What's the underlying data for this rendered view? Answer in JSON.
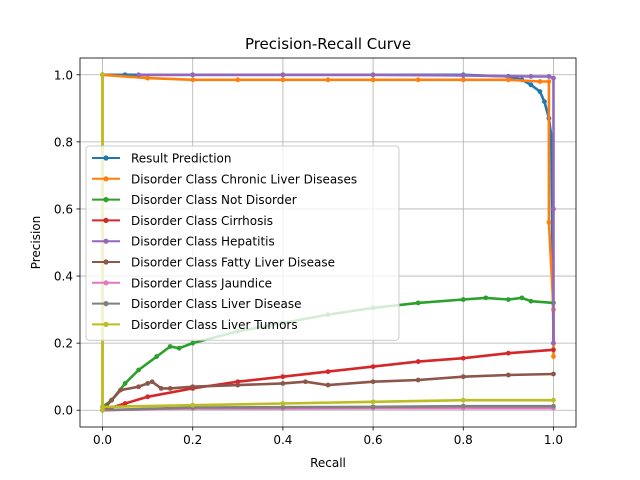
{
  "chart_data": {
    "type": "line",
    "title": "Precision-Recall Curve",
    "xlabel": "Recall",
    "ylabel": "Precision",
    "xlim": [
      -0.05,
      1.05
    ],
    "ylim": [
      -0.05,
      1.05
    ],
    "xticks": [
      0.0,
      0.2,
      0.4,
      0.6,
      0.8,
      1.0
    ],
    "yticks": [
      0.0,
      0.2,
      0.4,
      0.6,
      0.8,
      1.0
    ],
    "xtick_labels": [
      "0.0",
      "0.2",
      "0.4",
      "0.6",
      "0.8",
      "1.0"
    ],
    "ytick_labels": [
      "0.0",
      "0.2",
      "0.4",
      "0.6",
      "0.8",
      "1.0"
    ],
    "grid": true,
    "legend_position": "center-left",
    "series": [
      {
        "name": "Result Prediction",
        "color": "#1f77b4",
        "x": [
          0.0,
          0.0,
          0.05,
          0.2,
          0.4,
          0.6,
          0.8,
          0.9,
          0.93,
          0.95,
          0.97,
          0.98,
          0.99,
          0.995,
          1.0
        ],
        "y": [
          1.0,
          1.0,
          1.0,
          1.0,
          1.0,
          1.0,
          1.0,
          0.995,
          0.985,
          0.97,
          0.95,
          0.92,
          0.87,
          0.82,
          0.2
        ]
      },
      {
        "name": "Disorder Class Chronic Liver Diseases",
        "color": "#ff7f0e",
        "x": [
          0.0,
          0.0,
          0.1,
          0.2,
          0.3,
          0.4,
          0.5,
          0.6,
          0.7,
          0.8,
          0.9,
          0.97,
          0.99,
          0.99,
          1.0,
          1.0
        ],
        "y": [
          0.0,
          1.0,
          0.99,
          0.985,
          0.985,
          0.985,
          0.985,
          0.985,
          0.985,
          0.985,
          0.985,
          0.98,
          0.98,
          0.56,
          0.3,
          0.16
        ]
      },
      {
        "name": "Disorder Class Not Disorder",
        "color": "#2ca02c",
        "x": [
          0.0,
          0.02,
          0.05,
          0.08,
          0.12,
          0.15,
          0.17,
          0.2,
          0.3,
          0.4,
          0.5,
          0.6,
          0.7,
          0.8,
          0.85,
          0.9,
          0.93,
          0.95,
          1.0
        ],
        "y": [
          0.01,
          0.03,
          0.08,
          0.12,
          0.16,
          0.19,
          0.185,
          0.2,
          0.235,
          0.26,
          0.285,
          0.305,
          0.32,
          0.33,
          0.335,
          0.33,
          0.335,
          0.325,
          0.32
        ]
      },
      {
        "name": "Disorder Class Cirrhosis",
        "color": "#d62728",
        "x": [
          0.0,
          0.05,
          0.1,
          0.2,
          0.3,
          0.4,
          0.5,
          0.6,
          0.7,
          0.8,
          0.9,
          1.0
        ],
        "y": [
          0.0,
          0.02,
          0.04,
          0.065,
          0.085,
          0.1,
          0.115,
          0.13,
          0.145,
          0.155,
          0.17,
          0.18
        ]
      },
      {
        "name": "Disorder Class Hepatitis",
        "color": "#9467bd",
        "x": [
          0.08,
          0.2,
          0.4,
          0.6,
          0.8,
          0.95,
          0.99,
          1.0,
          1.0,
          1.0
        ],
        "y": [
          1.0,
          1.0,
          1.0,
          1.0,
          0.998,
          0.995,
          0.995,
          0.99,
          0.6,
          0.2
        ]
      },
      {
        "name": "Disorder Class Fatty Liver Disease",
        "color": "#8c564b",
        "x": [
          0.0,
          0.02,
          0.04,
          0.08,
          0.1,
          0.11,
          0.13,
          0.15,
          0.2,
          0.3,
          0.4,
          0.45,
          0.5,
          0.6,
          0.7,
          0.8,
          0.9,
          1.0
        ],
        "y": [
          0.0,
          0.03,
          0.06,
          0.07,
          0.08,
          0.085,
          0.065,
          0.065,
          0.07,
          0.075,
          0.08,
          0.085,
          0.075,
          0.085,
          0.09,
          0.1,
          0.105,
          0.108
        ]
      },
      {
        "name": "Disorder Class Jaundice",
        "color": "#e377c2",
        "x": [
          0.0,
          0.2,
          0.4,
          0.6,
          0.8,
          1.0
        ],
        "y": [
          0.0,
          0.005,
          0.005,
          0.006,
          0.006,
          0.006
        ]
      },
      {
        "name": "Disorder Class Liver Disease",
        "color": "#7f7f7f",
        "x": [
          0.0,
          0.2,
          0.4,
          0.6,
          0.8,
          1.0
        ],
        "y": [
          0.0,
          0.008,
          0.009,
          0.01,
          0.012,
          0.012
        ]
      },
      {
        "name": "Disorder Class Liver Tumors",
        "color": "#bcbd22",
        "x": [
          0.0,
          0.0,
          0.0,
          0.2,
          0.4,
          0.6,
          0.8,
          1.0
        ],
        "y": [
          1.0,
          0.0,
          0.01,
          0.015,
          0.02,
          0.025,
          0.03,
          0.03
        ]
      }
    ]
  }
}
